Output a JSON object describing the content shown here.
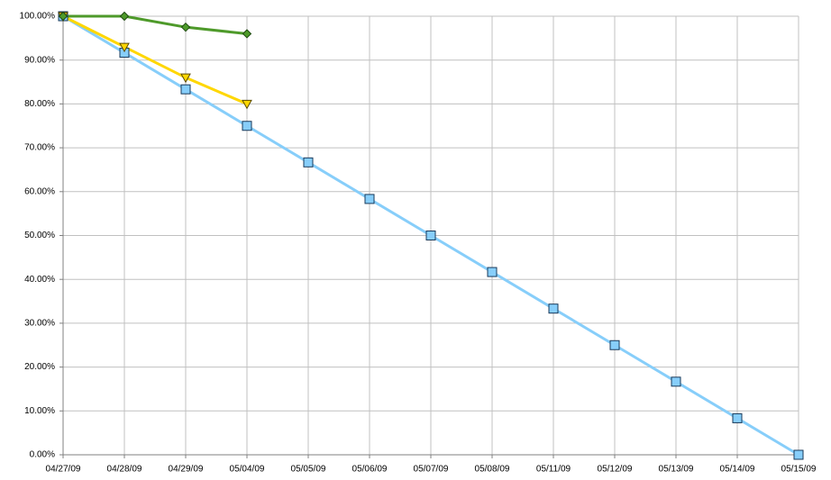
{
  "chart_data": {
    "type": "line",
    "categories": [
      "04/27/09",
      "04/28/09",
      "04/29/09",
      "05/04/09",
      "05/05/09",
      "05/06/09",
      "05/07/09",
      "05/08/09",
      "05/11/09",
      "05/12/09",
      "05/13/09",
      "05/14/09",
      "05/15/09"
    ],
    "series": [
      {
        "color": "#87cefa",
        "marker": "square",
        "values": [
          100,
          91.67,
          83.33,
          75,
          66.67,
          58.33,
          50,
          41.67,
          33.33,
          25,
          16.67,
          8.33,
          0
        ]
      },
      {
        "color": "#ffd700",
        "marker": "triangle-down",
        "values": [
          100,
          93,
          86,
          80,
          null,
          null,
          null,
          null,
          null,
          null,
          null,
          null,
          null
        ]
      },
      {
        "color": "#4e9a2a",
        "marker": "diamond",
        "values": [
          100,
          100,
          97.5,
          96,
          null,
          null,
          null,
          null,
          null,
          null,
          null,
          null,
          null
        ]
      }
    ],
    "ylim": [
      0,
      100
    ],
    "yticks": [
      {
        "value": 0,
        "label": "0.00%"
      },
      {
        "value": 10,
        "label": "10.00%"
      },
      {
        "value": 20,
        "label": "20.00%"
      },
      {
        "value": 30,
        "label": "30.00%"
      },
      {
        "value": 40,
        "label": "40.00%"
      },
      {
        "value": 50,
        "label": "50.00%"
      },
      {
        "value": 60,
        "label": "60.00%"
      },
      {
        "value": 70,
        "label": "70.00%"
      },
      {
        "value": 80,
        "label": "80.00%"
      },
      {
        "value": 90,
        "label": "90.00%"
      },
      {
        "value": 100,
        "label": "100.00%"
      }
    ],
    "grid": true
  }
}
